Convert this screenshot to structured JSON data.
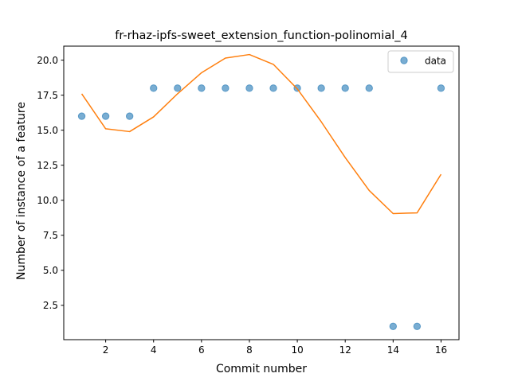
{
  "chart_data": {
    "type": "scatter",
    "title": "fr-rhaz-ipfs-sweet_extension_function-polinomial_4",
    "xlabel": "Commit number",
    "ylabel": "Number of instance of a feature",
    "xlim": [
      0.25,
      16.75
    ],
    "ylim": [
      0.05,
      21.0
    ],
    "xticks": [
      2,
      4,
      6,
      8,
      10,
      12,
      14,
      16
    ],
    "xtick_labels": [
      "2",
      "4",
      "6",
      "8",
      "10",
      "12",
      "14",
      "16"
    ],
    "yticks": [
      2.5,
      5.0,
      7.5,
      10.0,
      12.5,
      15.0,
      17.5,
      20.0
    ],
    "ytick_labels": [
      "2.5",
      "5.0",
      "7.5",
      "10.0",
      "12.5",
      "15.0",
      "17.5",
      "20.0"
    ],
    "grid": false,
    "legend_position": "top-right",
    "series": [
      {
        "name": "data",
        "kind": "scatter",
        "color": "#1f77b4",
        "x": [
          1,
          2,
          3,
          4,
          5,
          6,
          7,
          8,
          9,
          10,
          11,
          12,
          13,
          14,
          15,
          16
        ],
        "y": [
          16,
          16,
          16,
          18,
          18,
          18,
          18,
          18,
          18,
          18,
          18,
          18,
          18,
          1,
          1,
          18
        ]
      },
      {
        "kind": "line",
        "color": "#ff7f0e",
        "x": [
          1,
          2,
          3,
          4,
          5,
          6,
          7,
          8,
          9,
          10,
          11,
          12,
          13,
          14,
          15,
          16
        ],
        "y": [
          17.6,
          15.1,
          14.9,
          15.95,
          17.6,
          19.1,
          20.15,
          20.4,
          19.7,
          17.95,
          15.6,
          13.05,
          10.7,
          9.05,
          9.1,
          11.85
        ]
      }
    ]
  }
}
